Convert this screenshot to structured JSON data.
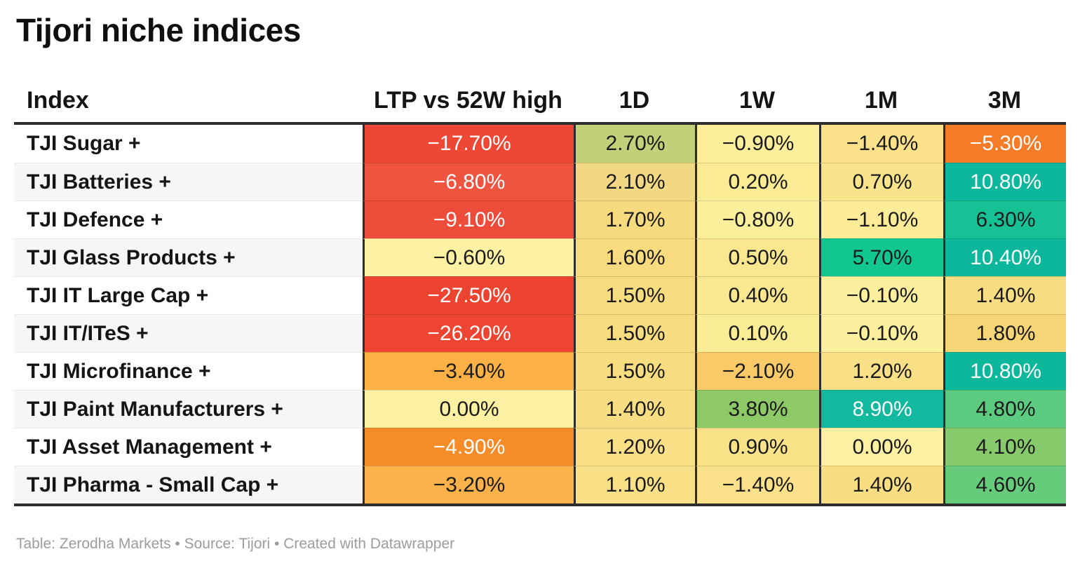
{
  "title": "Tijori niche indices",
  "footer": "Table: Zerodha Markets • Source: Tijori • Created with Datawrapper",
  "table": {
    "headers": [
      "Index",
      "LTP vs 52W high",
      "1D",
      "1W",
      "1M",
      "3M"
    ],
    "column_keys": [
      "ltp-vs-52w-high",
      "1d",
      "1w",
      "1m",
      "3m"
    ],
    "rows": [
      {
        "label": "TJI Sugar +",
        "cells": [
          {
            "text": "−17.70%",
            "bg": "#ee4735",
            "fg": "#ffffff"
          },
          {
            "text": "2.70%",
            "bg": "#c3d07a",
            "fg": "#1b1b1b"
          },
          {
            "text": "−0.90%",
            "bg": "#fcee9a",
            "fg": "#1b1b1b"
          },
          {
            "text": "−1.40%",
            "bg": "#fbe189",
            "fg": "#1b1b1b"
          },
          {
            "text": "−5.30%",
            "bg": "#f57b26",
            "fg": "#ffffff"
          }
        ]
      },
      {
        "label": "TJI Batteries +",
        "cells": [
          {
            "text": "−6.80%",
            "bg": "#ef5441",
            "fg": "#ffffff"
          },
          {
            "text": "2.10%",
            "bg": "#f3d883",
            "fg": "#1b1b1b"
          },
          {
            "text": "0.20%",
            "bg": "#fbeb94",
            "fg": "#1b1b1b"
          },
          {
            "text": "0.70%",
            "bg": "#fae48b",
            "fg": "#1b1b1b"
          },
          {
            "text": "10.80%",
            "bg": "#0db79b",
            "fg": "#ffffff"
          }
        ]
      },
      {
        "label": "TJI Defence +",
        "cells": [
          {
            "text": "−9.10%",
            "bg": "#ee4c3a",
            "fg": "#ffffff"
          },
          {
            "text": "1.70%",
            "bg": "#f7da7d",
            "fg": "#1b1b1b"
          },
          {
            "text": "−0.80%",
            "bg": "#fcef9c",
            "fg": "#1b1b1b"
          },
          {
            "text": "−1.10%",
            "bg": "#fcec97",
            "fg": "#1b1b1b"
          },
          {
            "text": "6.30%",
            "bg": "#16c295",
            "fg": "#1b1b1b"
          }
        ]
      },
      {
        "label": "TJI Glass Products +",
        "cells": [
          {
            "text": "−0.60%",
            "bg": "#fdf2a4",
            "fg": "#1b1b1b"
          },
          {
            "text": "1.60%",
            "bg": "#f8db7e",
            "fg": "#1b1b1b"
          },
          {
            "text": "0.50%",
            "bg": "#fae78f",
            "fg": "#1b1b1b"
          },
          {
            "text": "5.70%",
            "bg": "#11c78f",
            "fg": "#1b1b1b"
          },
          {
            "text": "10.40%",
            "bg": "#0db79c",
            "fg": "#ffffff"
          }
        ]
      },
      {
        "label": "TJI IT Large Cap +",
        "cells": [
          {
            "text": "−27.50%",
            "bg": "#ed4431",
            "fg": "#ffffff"
          },
          {
            "text": "1.50%",
            "bg": "#f8dc80",
            "fg": "#1b1b1b"
          },
          {
            "text": "0.40%",
            "bg": "#fae890",
            "fg": "#1b1b1b"
          },
          {
            "text": "−0.10%",
            "bg": "#fcf09e",
            "fg": "#1b1b1b"
          },
          {
            "text": "1.40%",
            "bg": "#f8dd82",
            "fg": "#1b1b1b"
          }
        ]
      },
      {
        "label": "TJI IT/ITeS +",
        "cells": [
          {
            "text": "−26.20%",
            "bg": "#ed4532",
            "fg": "#ffffff"
          },
          {
            "text": "1.50%",
            "bg": "#f8dc80",
            "fg": "#1b1b1b"
          },
          {
            "text": "0.10%",
            "bg": "#fbec96",
            "fg": "#1b1b1b"
          },
          {
            "text": "−0.10%",
            "bg": "#fcf09e",
            "fg": "#1b1b1b"
          },
          {
            "text": "1.80%",
            "bg": "#f6d577",
            "fg": "#1b1b1b"
          }
        ]
      },
      {
        "label": "TJI Microfinance +",
        "cells": [
          {
            "text": "−3.40%",
            "bg": "#fbb145",
            "fg": "#1b1b1b"
          },
          {
            "text": "1.50%",
            "bg": "#f8dc80",
            "fg": "#1b1b1b"
          },
          {
            "text": "−2.10%",
            "bg": "#f9cb68",
            "fg": "#1b1b1b"
          },
          {
            "text": "1.20%",
            "bg": "#f9df85",
            "fg": "#1b1b1b"
          },
          {
            "text": "10.80%",
            "bg": "#0db79b",
            "fg": "#ffffff"
          }
        ]
      },
      {
        "label": "TJI Paint Manufacturers +",
        "cells": [
          {
            "text": "0.00%",
            "bg": "#fcf0a2",
            "fg": "#1b1b1b"
          },
          {
            "text": "1.40%",
            "bg": "#f8dd82",
            "fg": "#1b1b1b"
          },
          {
            "text": "3.80%",
            "bg": "#8dc966",
            "fg": "#1b1b1b"
          },
          {
            "text": "8.90%",
            "bg": "#12b99e",
            "fg": "#ffffff"
          },
          {
            "text": "4.80%",
            "bg": "#5ccb80",
            "fg": "#1b1b1b"
          }
        ]
      },
      {
        "label": "TJI Asset Management +",
        "cells": [
          {
            "text": "−4.90%",
            "bg": "#f68c28",
            "fg": "#ffffff"
          },
          {
            "text": "1.20%",
            "bg": "#f9df85",
            "fg": "#1b1b1b"
          },
          {
            "text": "0.90%",
            "bg": "#f9e288",
            "fg": "#1b1b1b"
          },
          {
            "text": "0.00%",
            "bg": "#fcf0a2",
            "fg": "#1b1b1b"
          },
          {
            "text": "4.10%",
            "bg": "#86ca6b",
            "fg": "#1b1b1b"
          }
        ]
      },
      {
        "label": "TJI Pharma - Small Cap +",
        "cells": [
          {
            "text": "−3.20%",
            "bg": "#fbb24a",
            "fg": "#1b1b1b"
          },
          {
            "text": "1.10%",
            "bg": "#f9e086",
            "fg": "#1b1b1b"
          },
          {
            "text": "−1.40%",
            "bg": "#fbe189",
            "fg": "#1b1b1b"
          },
          {
            "text": "1.40%",
            "bg": "#f8dd82",
            "fg": "#1b1b1b"
          },
          {
            "text": "4.60%",
            "bg": "#66cb7b",
            "fg": "#1b1b1b"
          }
        ]
      }
    ]
  },
  "colors": {
    "header_border": "#2d2d2d",
    "zebra_even": "#ffffff",
    "zebra_odd": "#f6f6f6",
    "negative_extreme": "#ed4431",
    "neutral": "#fcf0a2",
    "positive_extreme": "#0db79b"
  },
  "chart_data": {
    "type": "heatmap",
    "title": "Tijori niche indices",
    "columns": [
      "LTP vs 52W high",
      "1D",
      "1W",
      "1M",
      "3M"
    ],
    "rows": [
      "TJI Sugar +",
      "TJI Batteries +",
      "TJI Defence +",
      "TJI Glass Products +",
      "TJI IT Large Cap +",
      "TJI IT/ITeS +",
      "TJI Microfinance +",
      "TJI Paint Manufacturers +",
      "TJI Asset Management +",
      "TJI Pharma - Small Cap +"
    ],
    "values_pct": [
      [
        -17.7,
        2.7,
        -0.9,
        -1.4,
        -5.3
      ],
      [
        -6.8,
        2.1,
        0.2,
        0.7,
        10.8
      ],
      [
        -9.1,
        1.7,
        -0.8,
        -1.1,
        6.3
      ],
      [
        -0.6,
        1.6,
        0.5,
        5.7,
        10.4
      ],
      [
        -27.5,
        1.5,
        0.4,
        -0.1,
        1.4
      ],
      [
        -26.2,
        1.5,
        0.1,
        -0.1,
        1.8
      ],
      [
        -3.4,
        1.5,
        -2.1,
        1.2,
        10.8
      ],
      [
        0.0,
        1.4,
        3.8,
        8.9,
        4.8
      ],
      [
        -4.9,
        1.2,
        0.9,
        0.0,
        4.1
      ],
      [
        -3.2,
        1.1,
        -1.4,
        1.4,
        4.6
      ]
    ],
    "color_scale": "diverging red→yellow→green/teal, centered near 0",
    "legend_position": "none",
    "source_line": "Table: Zerodha Markets • Source: Tijori • Created with Datawrapper"
  }
}
